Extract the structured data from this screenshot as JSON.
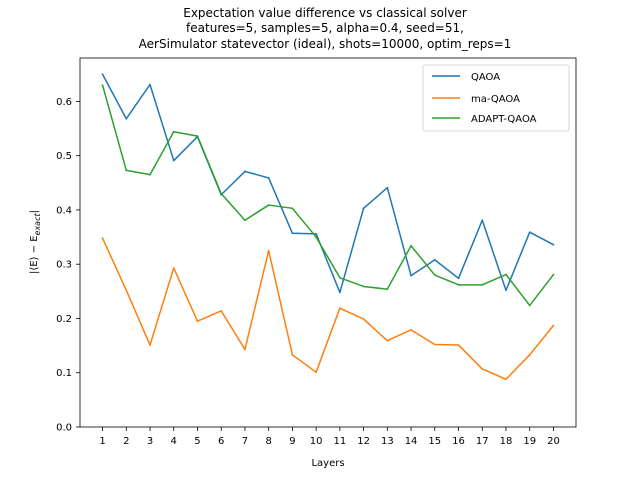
{
  "chart_data": {
    "type": "line",
    "title_lines": [
      "Expectation value difference vs classical solver",
      "features=5, samples=5, alpha=0.4, seed=51,",
      "AerSimulator statevector (ideal), shots=10000, optim_reps=1"
    ],
    "xlabel": "Layers",
    "ylabel_parts": {
      "main": "|⟨E⟩ − E",
      "sub": "exact",
      "end": "|"
    },
    "x": [
      1,
      2,
      3,
      4,
      5,
      6,
      7,
      8,
      9,
      10,
      11,
      12,
      13,
      14,
      15,
      16,
      17,
      18,
      19,
      20
    ],
    "x_tick_labels": [
      "1",
      "2",
      "3",
      "4",
      "5",
      "6",
      "7",
      "8",
      "9",
      "10",
      "11",
      "12",
      "13",
      "14",
      "15",
      "16",
      "17",
      "18",
      "19",
      "20"
    ],
    "ylim": [
      0.0,
      0.68
    ],
    "y_ticks": [
      0.0,
      0.1,
      0.2,
      0.3,
      0.4,
      0.5,
      0.6
    ],
    "y_tick_labels": [
      "0.0",
      "0.1",
      "0.2",
      "0.3",
      "0.4",
      "0.5",
      "0.6"
    ],
    "grid": false,
    "legend_position": "top-right",
    "series": [
      {
        "name": "QAOA",
        "color": "#1f77b4",
        "values": [
          0.65,
          0.568,
          0.631,
          0.491,
          0.535,
          0.428,
          0.471,
          0.459,
          0.357,
          0.356,
          0.248,
          0.403,
          0.441,
          0.279,
          0.308,
          0.274,
          0.381,
          0.252,
          0.359,
          0.336
        ]
      },
      {
        "name": "ma-QAOA",
        "color": "#ff7f0e",
        "values": [
          0.348,
          0.252,
          0.151,
          0.293,
          0.195,
          0.214,
          0.143,
          0.325,
          0.133,
          0.101,
          0.219,
          0.199,
          0.159,
          0.179,
          0.152,
          0.151,
          0.107,
          0.088,
          0.133,
          0.187
        ]
      },
      {
        "name": "ADAPT-QAOA",
        "color": "#2ca02c",
        "values": [
          0.63,
          0.473,
          0.465,
          0.544,
          0.536,
          0.43,
          0.381,
          0.409,
          0.403,
          0.35,
          0.275,
          0.259,
          0.254,
          0.334,
          0.28,
          0.262,
          0.262,
          0.281,
          0.224,
          0.281
        ]
      }
    ]
  }
}
